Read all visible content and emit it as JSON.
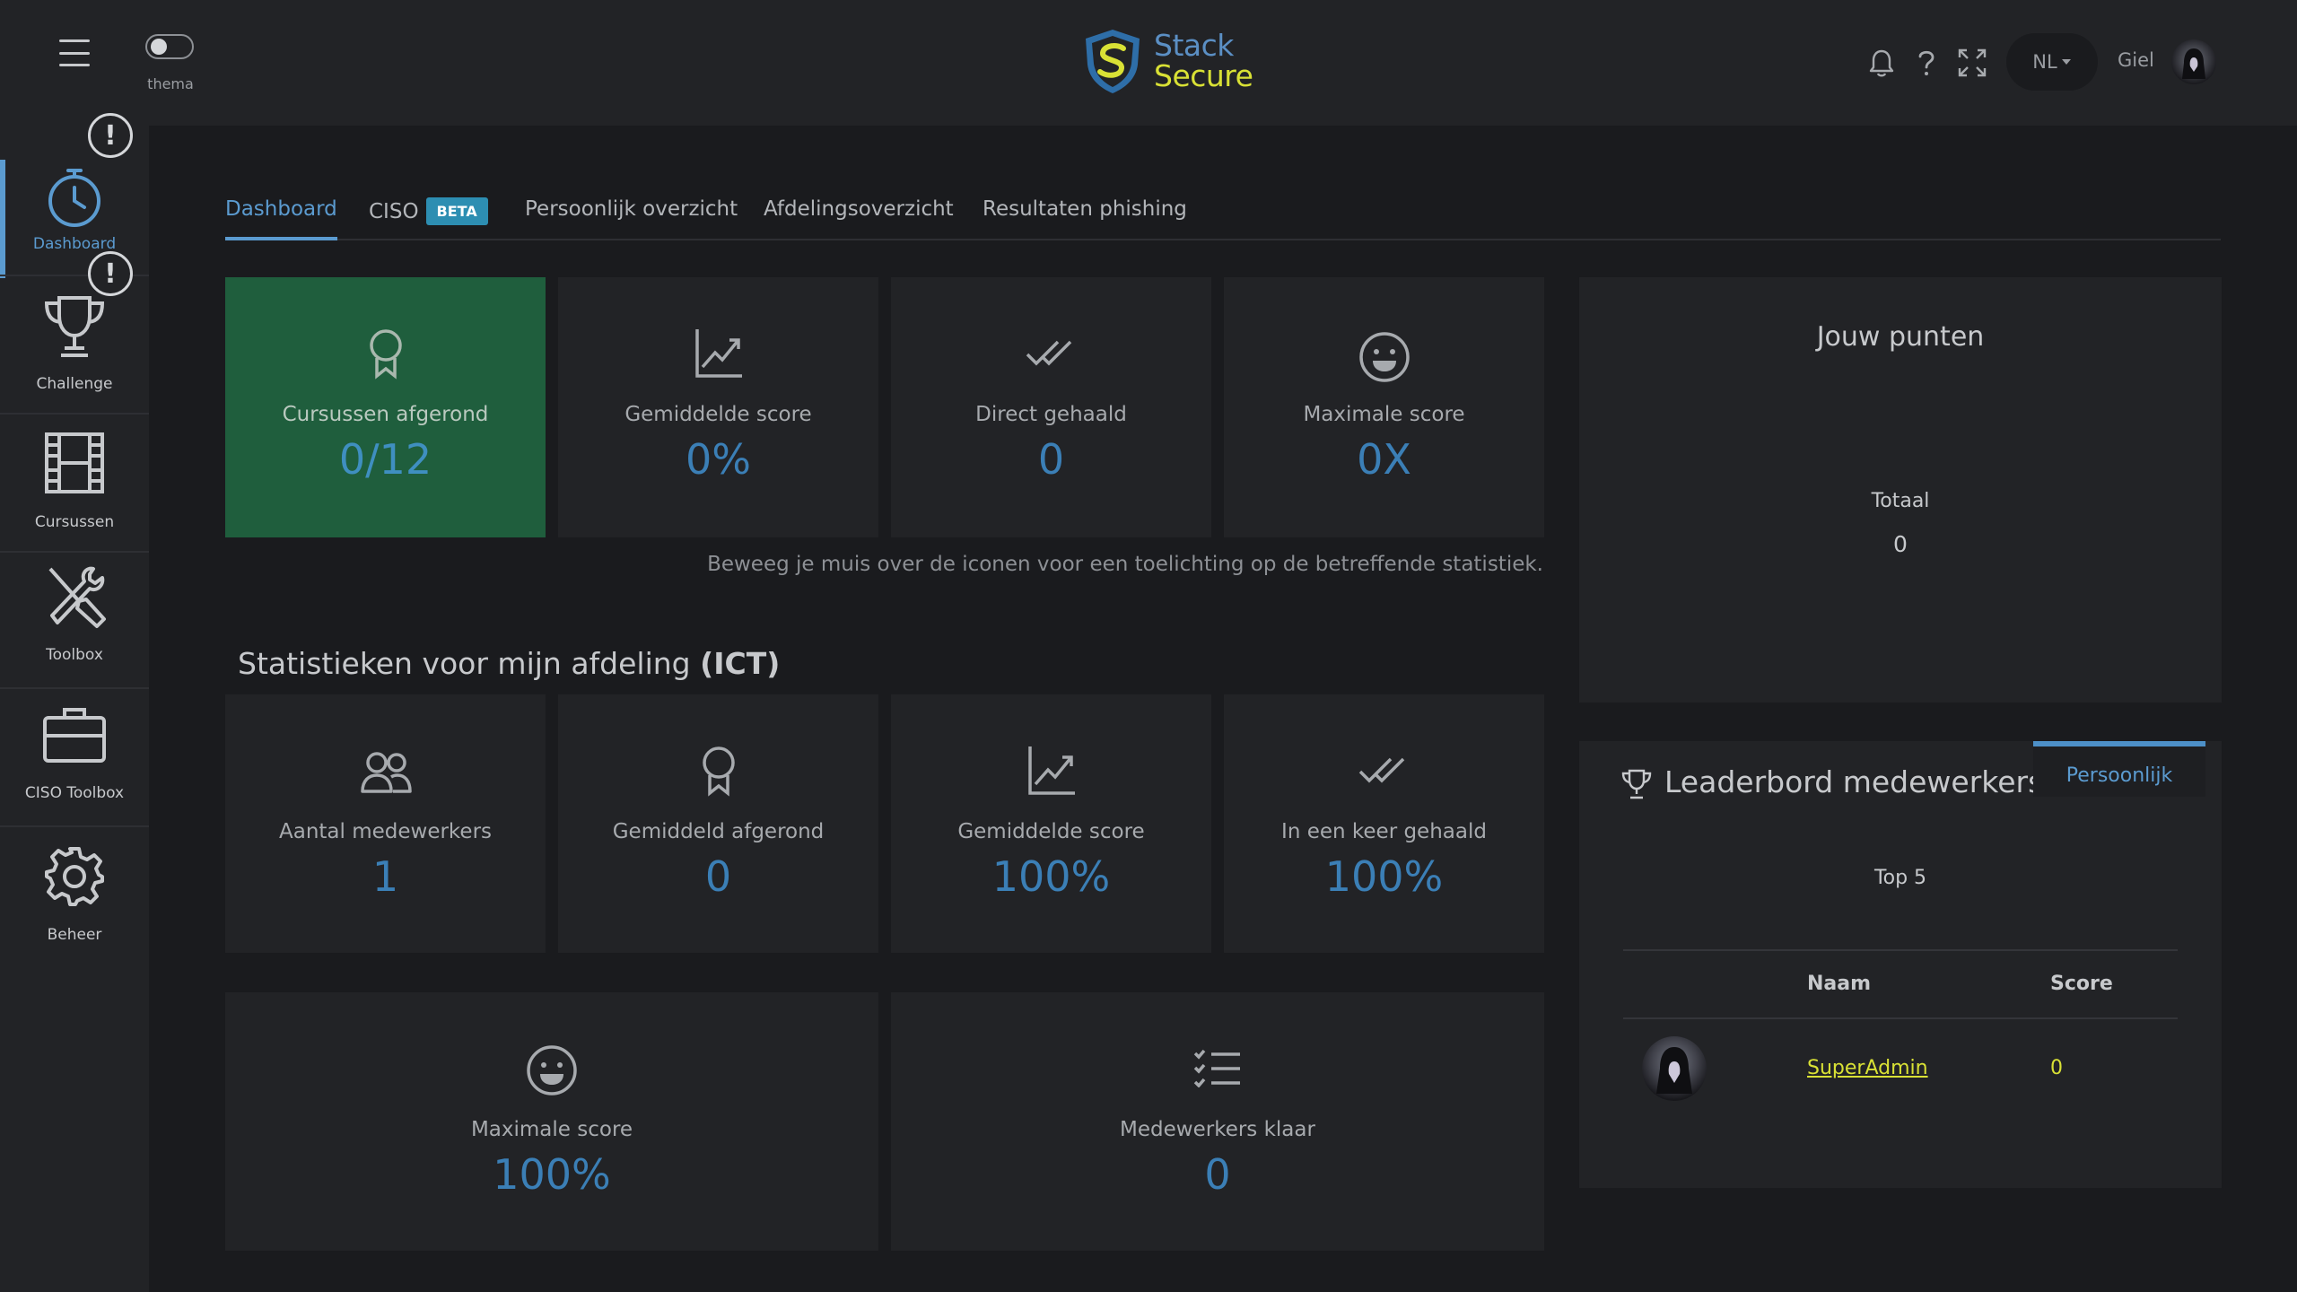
{
  "header": {
    "theme_label": "thema",
    "logo_line1": "Stack",
    "logo_line2": "Secure",
    "language": "NL",
    "user_name": "Giel"
  },
  "sidebar": {
    "items": [
      {
        "label": "Dashboard"
      },
      {
        "label": "Challenge"
      },
      {
        "label": "Cursussen"
      },
      {
        "label": "Toolbox"
      },
      {
        "label": "CISO Toolbox"
      },
      {
        "label": "Beheer"
      }
    ],
    "alert_symbol": "!"
  },
  "tabs": {
    "dashboard": "Dashboard",
    "ciso": "CISO",
    "beta": "BETA",
    "personal": "Persoonlijk overzicht",
    "department": "Afdelingsoverzicht",
    "phishing": "Resultaten phishing"
  },
  "personal_stats": [
    {
      "label": "Cursussen afgerond",
      "value": "0/12"
    },
    {
      "label": "Gemiddelde score",
      "value": "0%"
    },
    {
      "label": "Direct gehaald",
      "value": "0"
    },
    {
      "label": "Maximale score",
      "value": "0X"
    }
  ],
  "hint": "Beweeg je muis over de iconen voor een toelichting op de betreffende statistiek.",
  "department": {
    "title_prefix": "Statistieken voor mijn afdeling",
    "title_dept": "(ICT)",
    "stats": [
      {
        "label": "Aantal medewerkers",
        "value": "1"
      },
      {
        "label": "Gemiddeld afgerond",
        "value": "0"
      },
      {
        "label": "Gemiddelde score",
        "value": "100%"
      },
      {
        "label": "In een keer gehaald",
        "value": "100%"
      },
      {
        "label": "Maximale score",
        "value": "100%"
      },
      {
        "label": "Medewerkers klaar",
        "value": "0"
      }
    ]
  },
  "points": {
    "title": "Jouw punten",
    "total_label": "Totaal",
    "total_value": "0"
  },
  "leaderboard": {
    "title": "Leaderbord medewerkers",
    "tab": "Persoonlijk",
    "subtitle": "Top 5",
    "col_name": "Naam",
    "col_score": "Score",
    "rows": [
      {
        "name": "SuperAdmin",
        "score": "0"
      }
    ]
  },
  "colors": {
    "accent": "#5b9bd0",
    "highlight": "#d9e135",
    "green_card": "#1f5e3d"
  }
}
